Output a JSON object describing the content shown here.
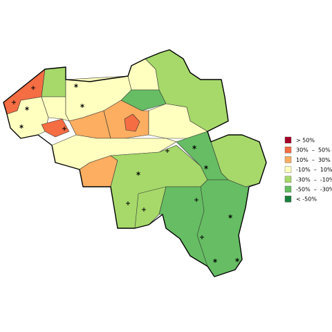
{
  "legend": [
    {
      "label": "> 50%",
      "color": "#a50026"
    },
    {
      "label": "30%  –  50%",
      "color": "#f46d43"
    },
    {
      "label": "10%  –  30%",
      "color": "#fdae61"
    },
    {
      "label": "-10%  –  10%",
      "color": "#ffffbf"
    },
    {
      "label": "-30%  –  -10%",
      "color": "#a6d96a"
    },
    {
      "label": "-50%  –  -30%",
      "color": "#66bd63"
    },
    {
      "label": "< -50%",
      "color": "#1a7f3c"
    }
  ]
}
